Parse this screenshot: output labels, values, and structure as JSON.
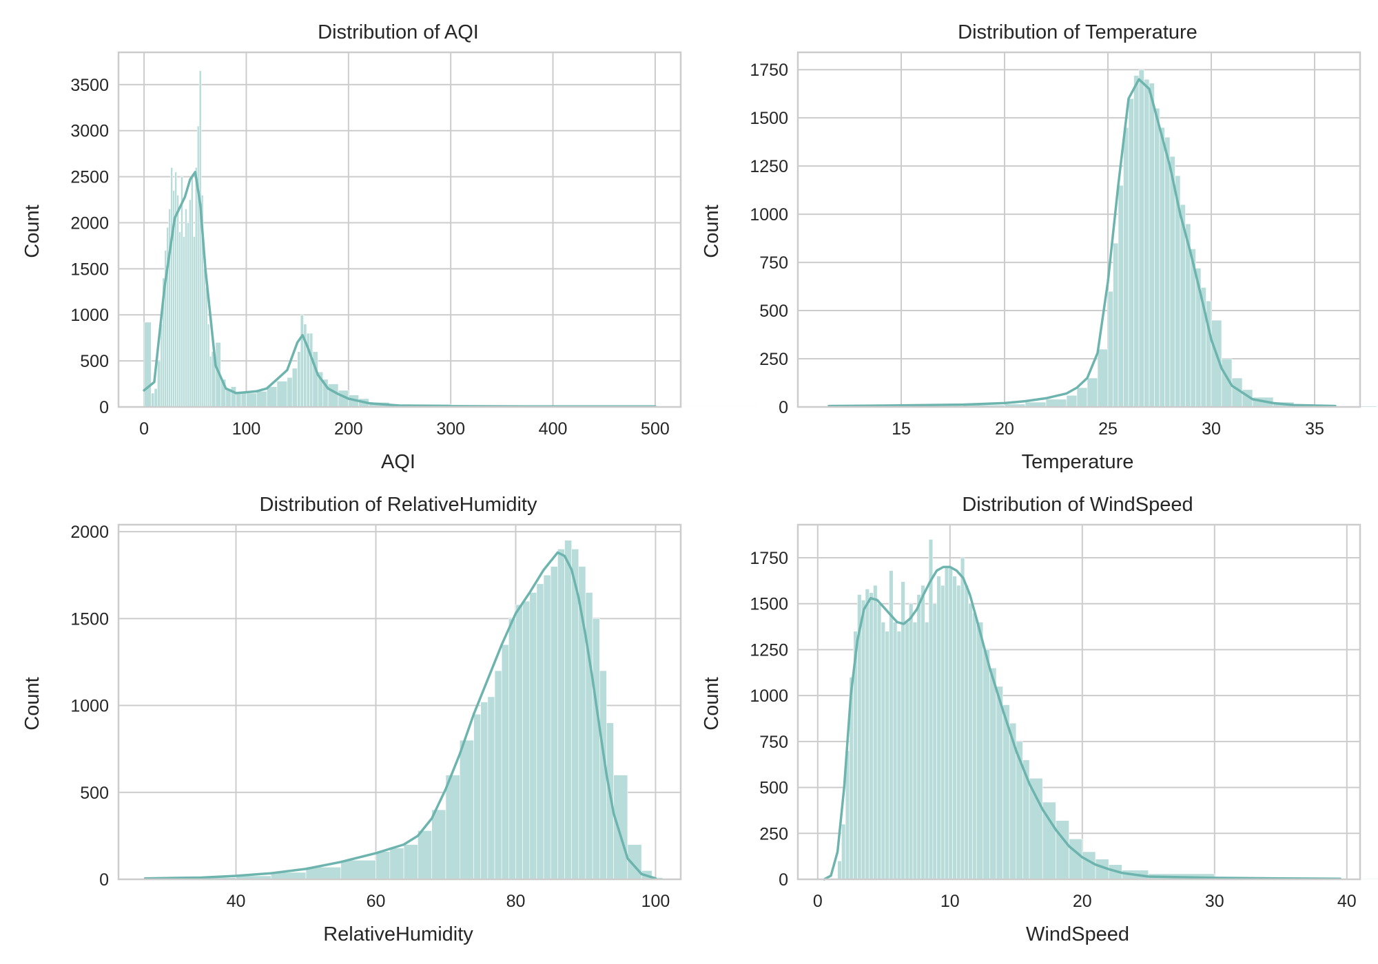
{
  "colors": {
    "bar": "#b8dcd9",
    "bar_edge": "#ffffff",
    "kde": "#6cb4ad",
    "grid": "#cccccc",
    "frame": "#cccccc"
  },
  "chart_data": [
    {
      "type": "histogram",
      "title": "Distribution of AQI",
      "xlabel": "AQI",
      "ylabel": "Count",
      "xlim": [
        -25,
        525
      ],
      "ylim": [
        0,
        3850
      ],
      "xticks": [
        0,
        100,
        200,
        300,
        400,
        500
      ],
      "yticks": [
        0,
        500,
        1000,
        1500,
        2000,
        2500,
        3000,
        3500
      ],
      "grid": true,
      "bins_x": [
        0,
        7,
        10,
        13,
        16,
        18,
        20,
        22,
        24,
        26,
        28,
        30,
        32,
        34,
        36,
        38,
        40,
        42,
        44,
        46,
        48,
        50,
        52,
        54,
        56,
        58,
        60,
        62,
        64,
        66,
        70,
        75,
        80,
        85,
        90,
        95,
        100,
        110,
        120,
        130,
        140,
        145,
        150,
        153,
        156,
        159,
        162,
        165,
        170,
        175,
        180,
        190,
        200,
        210,
        220,
        240,
        300,
        400,
        500
      ],
      "bins_y": [
        920,
        150,
        200,
        500,
        900,
        1400,
        1700,
        1950,
        2150,
        2600,
        2350,
        2550,
        2300,
        1900,
        2500,
        1850,
        2150,
        2000,
        2250,
        2500,
        1850,
        2600,
        3050,
        3650,
        2300,
        1500,
        1300,
        900,
        550,
        600,
        700,
        300,
        200,
        220,
        150,
        160,
        150,
        170,
        220,
        280,
        320,
        420,
        600,
        1000,
        900,
        800,
        800,
        600,
        380,
        300,
        250,
        180,
        130,
        90,
        50,
        30,
        15,
        10,
        5
      ],
      "kde_x": [
        0,
        10,
        20,
        30,
        40,
        45,
        50,
        55,
        60,
        70,
        80,
        90,
        100,
        110,
        120,
        130,
        140,
        150,
        155,
        160,
        170,
        180,
        190,
        200,
        220,
        250,
        300,
        400,
        500
      ],
      "kde_y": [
        180,
        270,
        1300,
        2050,
        2280,
        2470,
        2550,
        2200,
        1500,
        450,
        200,
        150,
        160,
        170,
        200,
        300,
        400,
        700,
        780,
        650,
        350,
        200,
        140,
        90,
        40,
        15,
        8,
        5,
        5
      ]
    },
    {
      "type": "histogram",
      "title": "Distribution of Temperature",
      "xlabel": "Temperature",
      "ylabel": "Count",
      "xlim": [
        10.0,
        37.2
      ],
      "ylim": [
        0,
        1840
      ],
      "xticks": [
        15,
        20,
        25,
        30,
        35
      ],
      "yticks": [
        0,
        250,
        500,
        750,
        1000,
        1250,
        1500,
        1750
      ],
      "grid": true,
      "bins_x": [
        11.5,
        15,
        18,
        20,
        21,
        22,
        23,
        23.5,
        24,
        24.5,
        25,
        25.25,
        25.5,
        25.75,
        26,
        26.25,
        26.5,
        26.75,
        27,
        27.25,
        27.5,
        27.75,
        28,
        28.25,
        28.5,
        28.75,
        29,
        29.25,
        29.5,
        29.75,
        30,
        30.5,
        31,
        31.5,
        32,
        33,
        34,
        36
      ],
      "bins_y": [
        5,
        5,
        10,
        15,
        25,
        40,
        60,
        100,
        150,
        300,
        600,
        850,
        1150,
        1450,
        1600,
        1720,
        1750,
        1700,
        1680,
        1550,
        1450,
        1400,
        1300,
        1200,
        1050,
        950,
        820,
        720,
        620,
        550,
        450,
        250,
        150,
        90,
        50,
        25,
        10,
        5
      ],
      "kde_x": [
        11.5,
        15,
        18,
        20,
        21,
        22,
        23,
        23.5,
        24,
        24.5,
        25,
        25.5,
        26,
        26.5,
        27,
        27.5,
        28,
        28.5,
        29,
        29.5,
        30,
        30.5,
        31,
        32,
        33,
        34,
        36
      ],
      "kde_y": [
        5,
        8,
        12,
        20,
        30,
        45,
        70,
        100,
        150,
        280,
        650,
        1150,
        1600,
        1700,
        1650,
        1450,
        1250,
        1000,
        800,
        580,
        350,
        200,
        110,
        40,
        20,
        10,
        5
      ]
    },
    {
      "type": "histogram",
      "title": "Distribution of RelativeHumidity",
      "xlabel": "RelativeHumidity",
      "ylabel": "Count",
      "xlim": [
        23.2,
        103.6
      ],
      "ylim": [
        0,
        2040
      ],
      "xticks": [
        40,
        60,
        80,
        100
      ],
      "yticks": [
        0,
        500,
        1000,
        1500,
        2000
      ],
      "grid": true,
      "bins_x": [
        27,
        35,
        40,
        45,
        50,
        55,
        60,
        62,
        64,
        66,
        68,
        70,
        72,
        74,
        75,
        76,
        77,
        78,
        79,
        80,
        81,
        82,
        83,
        84,
        85,
        86,
        87,
        88,
        89,
        90,
        91,
        92,
        93,
        94,
        96,
        98,
        99.5
      ],
      "bins_y": [
        5,
        10,
        20,
        40,
        70,
        110,
        160,
        180,
        200,
        280,
        400,
        600,
        800,
        950,
        1020,
        1050,
        1200,
        1350,
        1500,
        1580,
        1600,
        1650,
        1700,
        1750,
        1800,
        1900,
        1950,
        1900,
        1800,
        1650,
        1500,
        1200,
        900,
        600,
        200,
        50,
        10
      ],
      "kde_x": [
        27,
        35,
        40,
        45,
        50,
        55,
        60,
        64,
        66,
        68,
        70,
        72,
        74,
        76,
        78,
        80,
        82,
        84,
        86,
        87,
        88,
        89,
        90,
        91,
        92,
        93,
        94,
        96,
        98,
        100
      ],
      "kde_y": [
        5,
        10,
        20,
        35,
        60,
        100,
        150,
        200,
        250,
        350,
        520,
        720,
        950,
        1150,
        1350,
        1530,
        1650,
        1780,
        1880,
        1860,
        1780,
        1620,
        1400,
        1150,
        870,
        600,
        380,
        120,
        30,
        5
      ]
    },
    {
      "type": "histogram",
      "title": "Distribution of WindSpeed",
      "xlabel": "WindSpeed",
      "ylabel": "Count",
      "xlim": [
        -1.5,
        41.0
      ],
      "ylim": [
        0,
        1930
      ],
      "xticks": [
        0,
        10,
        20,
        30,
        40
      ],
      "yticks": [
        0,
        250,
        500,
        750,
        1000,
        1250,
        1500,
        1750
      ],
      "grid": true,
      "bins_x": [
        1.5,
        1.8,
        2.1,
        2.4,
        2.7,
        3,
        3.3,
        3.6,
        3.9,
        4.2,
        4.5,
        4.8,
        5.1,
        5.4,
        5.7,
        6,
        6.3,
        6.6,
        6.9,
        7.2,
        7.5,
        7.8,
        8.1,
        8.4,
        8.7,
        9,
        9.3,
        9.6,
        9.9,
        10.2,
        10.5,
        10.8,
        11.1,
        11.4,
        11.7,
        12,
        12.5,
        13,
        13.5,
        14,
        14.5,
        15,
        15.5,
        16,
        17,
        18,
        19,
        20,
        21,
        22,
        23,
        25,
        30,
        35,
        39.5
      ],
      "bins_y": [
        100,
        300,
        700,
        1100,
        1350,
        1550,
        1520,
        1580,
        1560,
        1600,
        1500,
        1400,
        1350,
        1680,
        1400,
        1350,
        1620,
        1400,
        1500,
        1400,
        1550,
        1600,
        1400,
        1850,
        1500,
        1650,
        1600,
        1700,
        1700,
        1650,
        1600,
        1750,
        1600,
        1500,
        1450,
        1400,
        1250,
        1150,
        1050,
        950,
        850,
        750,
        650,
        550,
        420,
        320,
        220,
        150,
        110,
        80,
        50,
        30,
        12,
        6,
        3
      ],
      "kde_x": [
        0.5,
        1,
        1.5,
        2,
        2.5,
        3,
        3.5,
        4,
        4.5,
        5,
        5.5,
        6,
        6.5,
        7,
        7.5,
        8,
        8.5,
        9,
        9.5,
        10,
        10.5,
        11,
        11.5,
        12,
        13,
        14,
        15,
        16,
        17,
        18,
        19,
        20,
        21,
        22,
        23,
        25,
        30,
        35,
        39.5
      ],
      "kde_y": [
        0,
        20,
        150,
        500,
        1000,
        1300,
        1470,
        1530,
        1520,
        1480,
        1440,
        1400,
        1390,
        1420,
        1470,
        1550,
        1620,
        1680,
        1700,
        1700,
        1680,
        1640,
        1550,
        1420,
        1150,
        920,
        700,
        520,
        380,
        270,
        180,
        120,
        80,
        55,
        35,
        15,
        8,
        5,
        3
      ]
    }
  ]
}
